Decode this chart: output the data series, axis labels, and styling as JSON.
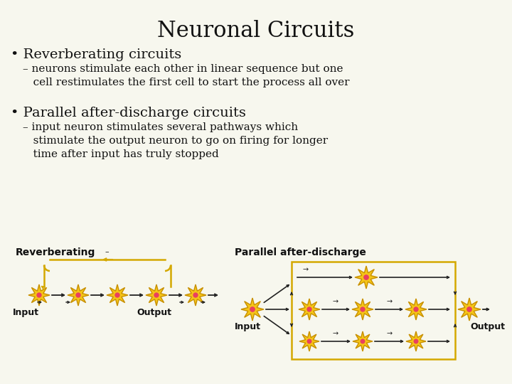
{
  "title": "Neuronal Circuits",
  "bg_color": "#f7f7ee",
  "title_fontsize": 22,
  "bullet1_header": "• Reverberating circuits",
  "bullet1_text": "– neurons stimulate each other in linear sequence but one\n   cell restimulates the first cell to start the process all over",
  "bullet2_header": "• Parallel after-discharge circuits",
  "bullet2_text": "– input neuron stimulates several pathways which\n   stimulate the output neuron to go on firing for longer\n   time after input has truly stopped",
  "diagram1_label": "Reverberating",
  "diagram2_label": "Parallel after-discharge",
  "neuron_color": "#f5c518",
  "neuron_edge_color": "#c89000",
  "neuron_center_color": "#e84060",
  "arrow_color": "#222222",
  "loop_color": "#d4a800",
  "text_color": "#111111",
  "header1_fontsize": 14,
  "header2_fontsize": 14,
  "body_fontsize": 11,
  "diag_label_fontsize": 10,
  "inout_fontsize": 9
}
